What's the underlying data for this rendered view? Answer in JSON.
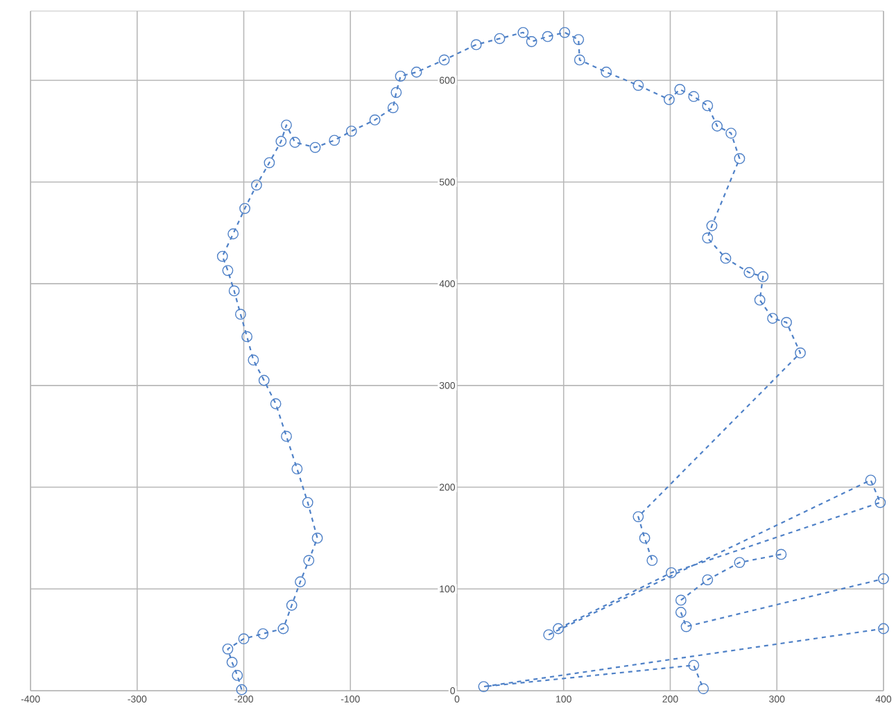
{
  "chart_data": {
    "type": "line",
    "xlim": [
      -400,
      400
    ],
    "ylim": [
      0,
      668
    ],
    "xticks": [
      -400,
      -300,
      -200,
      -100,
      0,
      100,
      200,
      300,
      400
    ],
    "yticks": [
      0,
      100,
      200,
      300,
      400,
      500,
      600
    ],
    "grid": true,
    "marker": "circle",
    "line_style": "dashed",
    "series": [
      {
        "color": "#4f81c7",
        "x": [
          -202,
          -206,
          -211,
          -215,
          -200,
          -182,
          -163,
          -155,
          -147,
          -139,
          -131,
          -140,
          -150,
          -160,
          -170,
          -181,
          -191,
          -197,
          -203,
          -209,
          -215,
          -220,
          -210,
          -199,
          -188,
          -176,
          -165,
          -160,
          -152,
          -133,
          -115,
          -99,
          -77,
          -60,
          -57,
          -53,
          -38,
          -12,
          18,
          40,
          62,
          70,
          85,
          101,
          114,
          115,
          140,
          170,
          199,
          209,
          222,
          235,
          244,
          257,
          265,
          239,
          235,
          252,
          274,
          287,
          284,
          296,
          309,
          322,
          170,
          176,
          183
        ],
        "values": [
          1,
          15,
          28,
          41,
          51,
          56,
          61,
          84,
          107,
          128,
          150,
          185,
          218,
          250,
          282,
          305,
          325,
          348,
          370,
          393,
          413,
          427,
          449,
          474,
          497,
          519,
          540,
          556,
          539,
          534,
          541,
          550,
          561,
          573,
          588,
          604,
          608,
          620,
          635,
          641,
          647,
          638,
          643,
          647,
          640,
          620,
          608,
          595,
          581,
          591,
          584,
          575,
          555,
          548,
          523,
          457,
          445,
          425,
          411,
          407,
          384,
          366,
          362,
          332,
          171,
          150,
          128
        ]
      },
      {
        "color": "#4f81c7",
        "x": [
          86,
          388,
          397,
          201,
          95
        ],
        "values": [
          55,
          207,
          185,
          116,
          61
        ]
      },
      {
        "color": "#4f81c7",
        "x": [
          210,
          235,
          265,
          304
        ],
        "values": [
          89,
          109,
          126,
          134
        ]
      },
      {
        "color": "#4f81c7",
        "x": [
          210,
          215,
          400
        ],
        "values": [
          77,
          63,
          110
        ]
      },
      {
        "color": "#4f81c7",
        "x": [
          400,
          25,
          222,
          231
        ],
        "values": [
          61,
          4,
          25,
          2
        ]
      }
    ]
  }
}
